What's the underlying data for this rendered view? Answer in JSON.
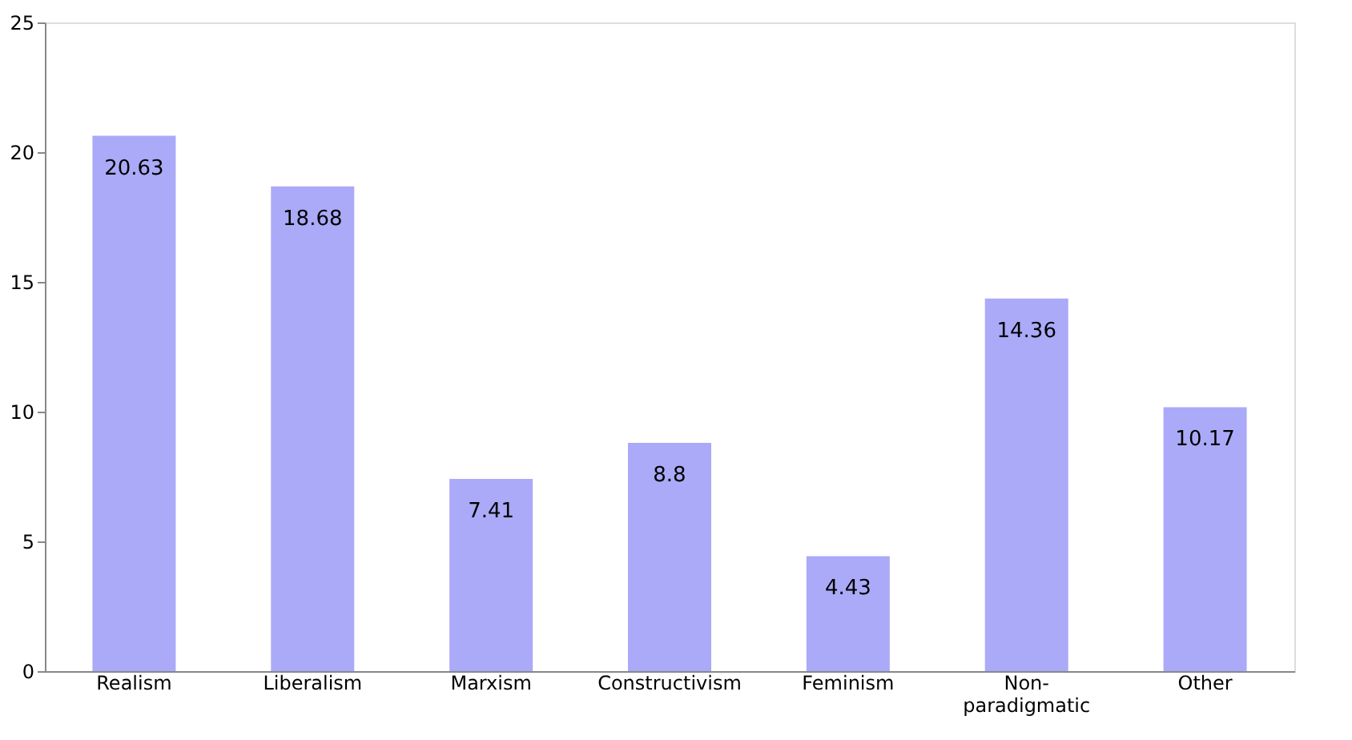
{
  "chart_data": {
    "type": "bar",
    "categories": [
      "Realism",
      "Liberalism",
      "Marxism",
      "Constructivism",
      "Feminism",
      "Non-paradigmatic",
      "Other"
    ],
    "values": [
      20.63,
      18.68,
      7.41,
      8.8,
      4.43,
      14.36,
      10.17
    ],
    "color": "#aaaaf8",
    "ylim": [
      0,
      25
    ],
    "yticks": [
      0,
      5,
      10,
      15,
      20,
      25
    ],
    "grid": false,
    "data_labels": true
  }
}
